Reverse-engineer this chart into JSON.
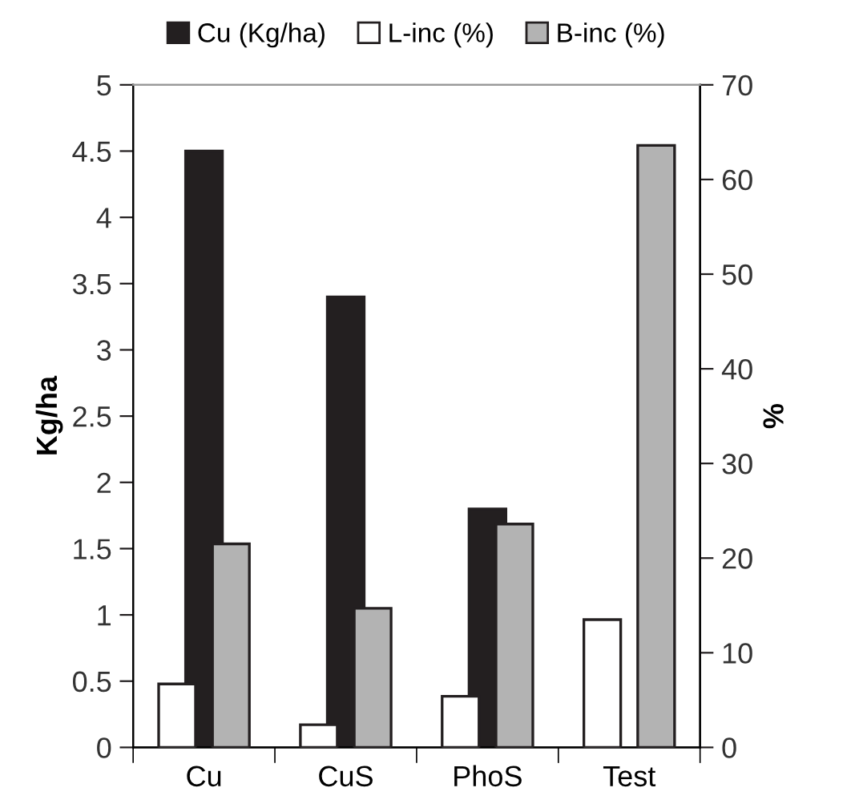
{
  "chart_data": {
    "type": "bar",
    "categories": [
      "Cu",
      "CuS",
      "PhoS",
      "Test"
    ],
    "ylabel": "Kg/ha",
    "y2label": "%",
    "series": [
      {
        "name": "Cu (Kg/ha)",
        "color": "#231f20",
        "values": [
          4.5,
          3.4,
          1.8,
          null
        ]
      },
      {
        "name": "L-inc (%)",
        "color": "#ffffff",
        "axis": "y2",
        "values": [
          6.7,
          2.4,
          5.4,
          13.5
        ]
      },
      {
        "name": "B-inc (%)",
        "color": "#b3b3b3",
        "axis": "y2",
        "values": [
          21.5,
          14.7,
          23.6,
          63.6
        ]
      }
    ],
    "ylim": [
      0,
      5
    ],
    "yticks": [
      0,
      0.5,
      1,
      1.5,
      2,
      2.5,
      3,
      3.5,
      4,
      4.5,
      5
    ],
    "y2lim": [
      0,
      70
    ],
    "y2ticks": [
      0,
      10,
      20,
      30,
      40,
      50,
      60,
      70
    ],
    "legend": "top",
    "grid": false
  }
}
